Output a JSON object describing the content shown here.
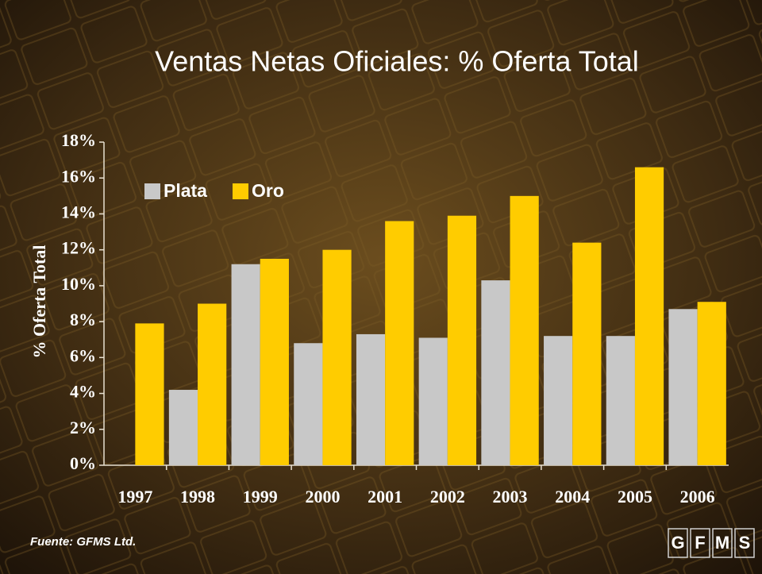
{
  "chart_data": {
    "type": "bar",
    "title": "Ventas Netas Oficiales: % Oferta Total",
    "ylabel": "% Oferta Total",
    "categories": [
      "1997",
      "1998",
      "1999",
      "2000",
      "2001",
      "2002",
      "2003",
      "2004",
      "2005",
      "2006"
    ],
    "series": [
      {
        "name": "Plata",
        "color": "#c8c8c8",
        "values": [
          null,
          4.2,
          11.2,
          6.8,
          7.3,
          7.1,
          10.3,
          7.2,
          7.2,
          8.7
        ]
      },
      {
        "name": "Oro",
        "color": "#ffcc00",
        "values": [
          7.9,
          9.0,
          11.5,
          12.0,
          13.6,
          13.9,
          15.0,
          12.4,
          16.6,
          9.1
        ]
      }
    ],
    "ylim": [
      0,
      18
    ],
    "yticks": [
      {
        "value": 0,
        "label": "0%"
      },
      {
        "value": 2,
        "label": "2%"
      },
      {
        "value": 4,
        "label": "4%"
      },
      {
        "value": 6,
        "label": "6%"
      },
      {
        "value": 8,
        "label": "8%"
      },
      {
        "value": 10,
        "label": "10%"
      },
      {
        "value": 12,
        "label": "12%"
      },
      {
        "value": 14,
        "label": "14%"
      },
      {
        "value": 16,
        "label": "16%"
      },
      {
        "value": 18,
        "label": "18%"
      }
    ],
    "legend": "upper-left",
    "source": "Fuente: GFMS Ltd.",
    "logo": [
      "G",
      "F",
      "M",
      "S"
    ]
  }
}
